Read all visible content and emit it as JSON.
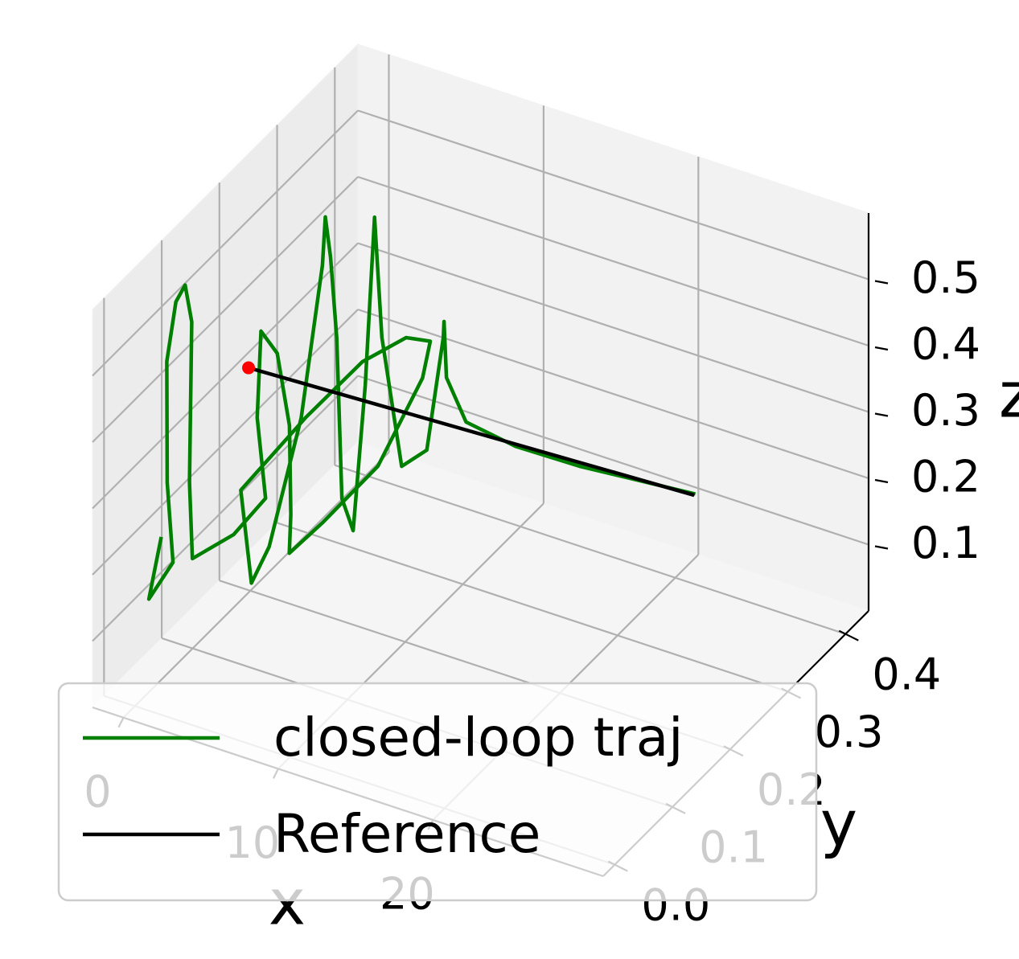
{
  "chart_data": {
    "type": "line3d",
    "x_label": "x",
    "y_label": "y",
    "z_label": "z",
    "xlim": [
      -2,
      31
    ],
    "ylim": [
      -0.02,
      0.44
    ],
    "zlim": [
      0,
      0.6
    ],
    "xticks": [
      0,
      10,
      20
    ],
    "yticks": [
      {
        "value": 0,
        "label": "0.0"
      },
      0.1,
      0.2,
      0.3,
      0.4
    ],
    "zticks": [
      0.1,
      0.2,
      0.3,
      0.4,
      0.5
    ],
    "grid": true,
    "legend_loc": "lower left",
    "series": [
      {
        "name": "closed-loop traj",
        "color": "green",
        "x": [
          -0.5,
          -1.3,
          -0.3,
          -0.6,
          -0.7,
          -0.9,
          -0.3,
          0.2,
          0.8,
          1.1,
          2.9,
          4.3,
          3.2,
          2.4,
          3.3,
          4.5,
          4.7,
          4.9,
          6.0,
          8.2,
          9.3,
          9.5,
          8.8,
          7.2,
          4.9,
          2.7,
          2.9,
          3.6,
          4.7,
          3.8,
          3.2,
          3.8,
          4.8,
          6.4,
          6.9,
          6.9,
          5.6,
          7.6,
          10.0,
          11.4,
          10.6,
          10.5,
          11.4,
          14.2,
          18.1,
          22.5,
          29.8
        ],
        "y": [
          0.059,
          0.059,
          0.074,
          0.072,
          0.074,
          0.095,
          0.095,
          0.093,
          0.073,
          0.07,
          0.093,
          0.111,
          0.126,
          0.154,
          0.158,
          0.147,
          0.144,
          0.136,
          0.164,
          0.201,
          0.249,
          0.257,
          0.234,
          0.201,
          0.164,
          0.111,
          0.124,
          0.136,
          0.162,
          0.223,
          0.244,
          0.237,
          0.221,
          0.187,
          0.193,
          0.214,
          0.265,
          0.224,
          0.194,
          0.2,
          0.25,
          0.254,
          0.234,
          0.193,
          0.174,
          0.167,
          0.172
        ],
        "z": [
          0.2,
          0.1,
          0.15,
          0.27,
          0.45,
          0.52,
          0.55,
          0.5,
          0.28,
          0.17,
          0.2,
          0.25,
          0.35,
          0.45,
          0.42,
          0.33,
          0.2,
          0.15,
          0.18,
          0.25,
          0.35,
          0.4,
          0.42,
          0.4,
          0.33,
          0.25,
          0.1,
          0.15,
          0.33,
          0.5,
          0.55,
          0.5,
          0.4,
          0.2,
          0.15,
          0.35,
          0.55,
          0.42,
          0.27,
          0.3,
          0.42,
          0.44,
          0.38,
          0.37,
          0.38,
          0.39,
          0.4
        ]
      },
      {
        "name": "Reference",
        "color": "black",
        "x": [
          1.0,
          29.8
        ],
        "y": [
          0.17,
          0.17
        ],
        "z": [
          0.37,
          0.4
        ]
      }
    ],
    "start_marker": {
      "x": 1.0,
      "y": 0.17,
      "z": 0.37,
      "color": "red"
    }
  }
}
